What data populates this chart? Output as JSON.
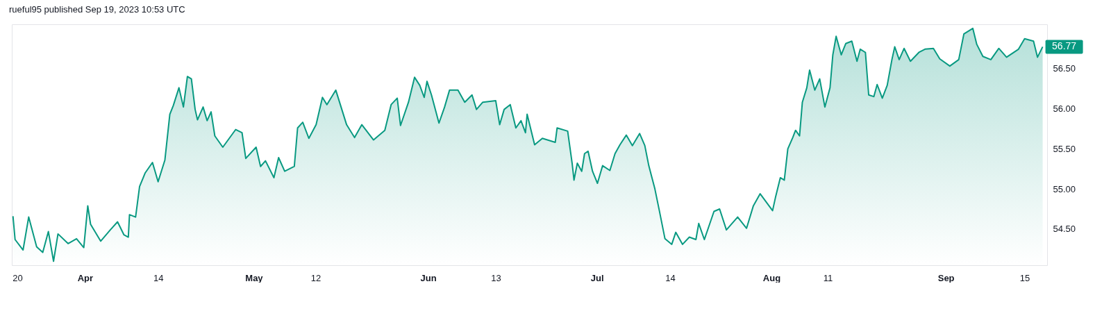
{
  "chart_data": {
    "type": "area",
    "title": "rueful95 published Sep 19, 2023 10:53 UTC",
    "color": "#089981",
    "x": [
      "2023-03-19T05:00",
      "2023-03-19T14:00",
      "2023-03-21",
      "2023-03-22",
      "2023-03-23T10:00",
      "2023-03-24T12:00",
      "2023-03-25T12:00",
      "2023-03-26T10:00",
      "2023-03-27T05:00",
      "2023-03-29",
      "2023-03-30T12:00",
      "2023-03-31T19:00",
      "2023-04-01T12:00",
      "2023-04-02",
      "2023-04-03T19:00",
      "2023-04-05T12:00",
      "2023-04-06T19:00",
      "2023-04-07T22:00",
      "2023-04-08T17:00",
      "2023-04-08T22:00",
      "2023-04-10",
      "2023-04-10T17:00",
      "2023-04-11T17:00",
      "2023-04-13",
      "2023-04-14",
      "2023-04-15T05:00",
      "2023-04-16T02:00",
      "2023-04-16T17:00",
      "2023-04-17T17:00",
      "2023-04-18T12:00",
      "2023-04-19T05:00",
      "2023-04-19T22:00",
      "2023-04-20T14:00",
      "2023-04-21",
      "2023-04-22",
      "2023-04-22T17:00",
      "2023-04-23T10:00",
      "2023-04-24T02:00",
      "2023-04-25T12:00",
      "2023-04-27T19:00",
      "2023-04-28T22:00",
      "2023-04-29T14:00",
      "2023-05-01T10:00",
      "2023-05-02T05:00",
      "2023-05-03T02:00",
      "2023-05-04T14:00",
      "2023-05-05T10:00",
      "2023-05-06T12:00",
      "2023-05-08T05:00",
      "2023-05-08T19:00",
      "2023-05-09T17:00",
      "2023-05-10T19:00",
      "2023-05-12T02:00",
      "2023-05-13T05:00",
      "2023-05-14",
      "2023-05-15T14:00",
      "2023-05-17T12:00",
      "2023-05-18T22:00",
      "2023-05-20T05:00",
      "2023-05-22T07:00",
      "2023-05-24T07:00",
      "2023-05-25T10:00",
      "2023-05-26T12:00",
      "2023-05-27T02:00",
      "2023-05-28T12:00",
      "2023-05-29T14:00",
      "2023-05-30T12:00",
      "2023-05-31T07:00",
      "2023-05-31T19:00",
      "2023-06-01T14:00",
      "2023-06-02T22:00",
      "2023-06-03T22:00",
      "2023-06-04T19:00",
      "2023-06-06T07:00",
      "2023-06-07T12:00",
      "2023-06-08T19:00",
      "2023-06-09T14:00",
      "2023-06-10T17:00",
      "2023-06-13",
      "2023-06-13T17:00",
      "2023-06-14T12:00",
      "2023-06-15T14:00",
      "2023-06-16T14:00",
      "2023-06-17T12:00",
      "2023-06-18T07:00",
      "2023-06-18T14:00",
      "2023-06-19T22:00",
      "2023-06-21T07:00",
      "2023-06-23T14:00",
      "2023-06-23T22:00",
      "2023-06-25T19:00",
      "2023-06-26T14:00",
      "2023-06-26T22:00",
      "2023-06-27T12:00",
      "2023-06-28T07:00",
      "2023-06-28T19:00",
      "2023-06-29T10:00",
      "2023-06-30T05:00",
      "2023-07-01T02:00",
      "2023-07-02",
      "2023-07-03T07:00",
      "2023-07-04T05:00",
      "2023-07-05T02:00",
      "2023-07-06T05:00",
      "2023-07-07T07:00",
      "2023-07-08T14:00",
      "2023-07-09T12:00",
      "2023-07-10T05:00",
      "2023-07-11T07:00",
      "2023-07-12T02:00",
      "2023-07-13T02:00",
      "2023-07-14T07:00",
      "2023-07-15",
      "2023-07-16T05:00",
      "2023-07-17T10:00",
      "2023-07-18T14:00",
      "2023-07-19T02:00",
      "2023-07-20T02:00",
      "2023-07-21T19:00",
      "2023-07-22T19:00",
      "2023-07-24",
      "2023-07-26",
      "2023-07-27T14:00",
      "2023-07-28T19:00",
      "2023-07-30",
      "2023-08-01T05:00",
      "2023-08-01T17:00",
      "2023-08-02T14:00",
      "2023-08-03T07:00",
      "2023-08-03T22:00",
      "2023-08-04T19:00",
      "2023-08-05T07:00",
      "2023-08-06",
      "2023-08-06T12:00",
      "2023-08-07T07:00",
      "2023-08-07T19:00",
      "2023-08-08T17:00",
      "2023-08-09T14:00",
      "2023-08-10T12:00",
      "2023-08-11T10:00",
      "2023-08-11T22:00",
      "2023-08-12T12:00",
      "2023-08-13T10:00",
      "2023-08-14T05:00",
      "2023-08-15T07:00",
      "2023-08-16T05:00",
      "2023-08-16T19:00",
      "2023-08-17T17:00",
      "2023-08-18T07:00",
      "2023-08-19T05:00",
      "2023-08-19T19:00",
      "2023-08-20T17:00",
      "2023-08-21T14:00",
      "2023-08-22T10:00",
      "2023-08-22T22:00",
      "2023-08-23T17:00",
      "2023-08-24T14:00",
      "2023-08-25T17:00",
      "2023-08-27T05:00",
      "2023-08-28T07:00",
      "2023-08-29T19:00",
      "2023-08-30T22:00",
      "2023-09-01T17:00",
      "2023-09-03T07:00",
      "2023-09-04T05:00",
      "2023-09-05T19:00",
      "2023-09-06T12:00",
      "2023-09-07T14:00",
      "2023-09-09",
      "2023-09-10T10:00",
      "2023-09-11T19:00",
      "2023-09-13T22:00",
      "2023-09-15",
      "2023-09-16T14:00",
      "2023-09-17T07:00",
      "2023-09-18T05:00"
    ],
    "values": [
      54.66,
      54.37,
      54.24,
      54.65,
      54.28,
      54.21,
      54.47,
      54.1,
      54.44,
      54.32,
      54.38,
      54.27,
      54.79,
      54.56,
      54.35,
      54.49,
      54.59,
      54.43,
      54.4,
      54.68,
      54.65,
      55.03,
      55.2,
      55.33,
      55.09,
      55.36,
      55.93,
      56.04,
      56.26,
      56.02,
      56.4,
      56.37,
      55.99,
      55.86,
      56.02,
      55.85,
      55.96,
      55.66,
      55.52,
      55.74,
      55.7,
      55.38,
      55.52,
      55.28,
      55.35,
      55.14,
      55.39,
      55.22,
      55.28,
      55.76,
      55.83,
      55.63,
      55.8,
      56.14,
      56.05,
      56.23,
      55.8,
      55.64,
      55.8,
      55.61,
      55.73,
      56.05,
      56.13,
      55.79,
      56.08,
      56.39,
      56.29,
      56.14,
      56.34,
      56.17,
      55.82,
      56.02,
      56.23,
      56.23,
      56.08,
      56.17,
      55.99,
      56.08,
      56.1,
      55.8,
      55.99,
      56.05,
      55.76,
      55.85,
      55.7,
      55.93,
      55.55,
      55.63,
      55.58,
      55.76,
      55.72,
      55.32,
      55.11,
      55.32,
      55.22,
      55.44,
      55.47,
      55.22,
      55.07,
      55.29,
      55.23,
      55.44,
      55.55,
      55.67,
      55.54,
      55.69,
      55.54,
      55.29,
      55.0,
      54.73,
      54.38,
      54.31,
      54.46,
      54.31,
      54.4,
      54.37,
      54.57,
      54.37,
      54.72,
      54.75,
      54.49,
      54.65,
      54.51,
      54.79,
      54.94,
      54.73,
      54.89,
      55.14,
      55.11,
      55.5,
      55.64,
      55.73,
      55.66,
      56.08,
      56.26,
      56.48,
      56.23,
      56.37,
      56.02,
      56.26,
      56.67,
      56.9,
      56.67,
      56.81,
      56.84,
      56.59,
      56.74,
      56.7,
      56.17,
      56.15,
      56.3,
      56.13,
      56.29,
      56.61,
      56.77,
      56.61,
      56.75,
      56.59,
      56.7,
      56.74,
      56.75,
      56.62,
      56.53,
      56.61,
      56.93,
      57.0,
      56.8,
      56.65,
      56.61,
      56.75,
      56.64,
      56.74,
      56.87,
      56.84,
      56.64,
      56.77
    ],
    "xlim": [
      "2023-03-19",
      "2023-09-19"
    ],
    "ylim": [
      54.05,
      57.05
    ],
    "xticks": [
      {
        "value": "2023-03-20",
        "label": "20"
      },
      {
        "value": "2023-04-01",
        "label": "Apr"
      },
      {
        "value": "2023-04-14",
        "label": "14"
      },
      {
        "value": "2023-05-01",
        "label": "May"
      },
      {
        "value": "2023-05-12",
        "label": "12"
      },
      {
        "value": "2023-06-01",
        "label": "Jun"
      },
      {
        "value": "2023-06-13",
        "label": "13"
      },
      {
        "value": "2023-07-01",
        "label": "Jul"
      },
      {
        "value": "2023-07-14",
        "label": "14"
      },
      {
        "value": "2023-08-01",
        "label": "Aug"
      },
      {
        "value": "2023-08-11",
        "label": "11"
      },
      {
        "value": "2023-09-01",
        "label": "Sep"
      },
      {
        "value": "2023-09-15",
        "label": "15"
      }
    ],
    "yticks": [
      {
        "value": 54.5,
        "label": "54.50"
      },
      {
        "value": 55,
        "label": "55.00"
      },
      {
        "value": 55.5,
        "label": "55.50"
      },
      {
        "value": 56,
        "label": "56.00"
      },
      {
        "value": 56.5,
        "label": "56.50"
      }
    ],
    "annotations": [
      {
        "text": "56.77",
        "x": "2023-09-18T05:00",
        "y": 56.77
      }
    ]
  }
}
